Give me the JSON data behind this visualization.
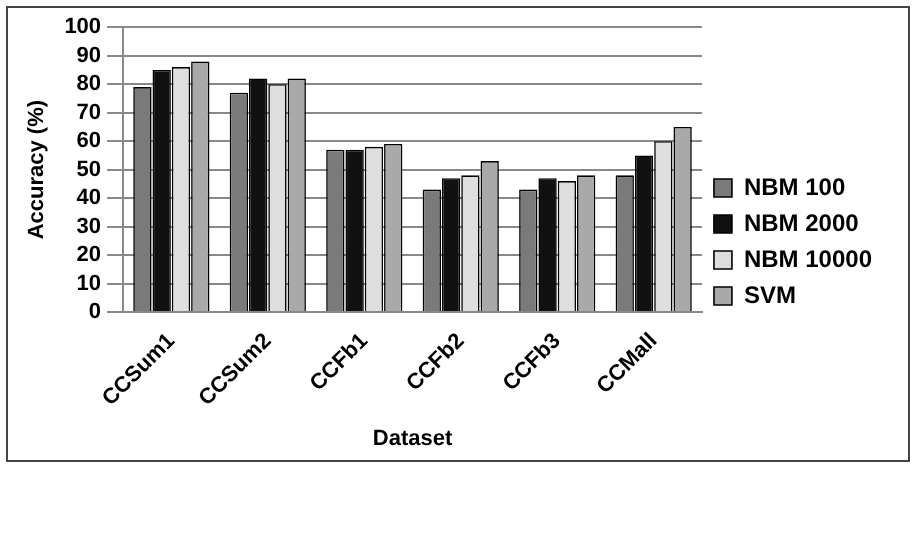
{
  "chart_data": {
    "type": "bar",
    "xlabel": "Dataset",
    "ylabel": "Accuracy (%)",
    "categories": [
      "CCSum1",
      "CCSum2",
      "CCFb1",
      "CCFb2",
      "CCFb3",
      "CCMall"
    ],
    "series": [
      {
        "name": "NBM 100",
        "color": "#7a7a7a",
        "values": [
          79,
          77,
          57,
          43,
          43,
          48
        ]
      },
      {
        "name": "NBM 2000",
        "color": "#111111",
        "values": [
          85,
          82,
          57,
          47,
          47,
          55
        ]
      },
      {
        "name": "NBM 10000",
        "color": "#dedede",
        "values": [
          86,
          80,
          58,
          48,
          46,
          60
        ]
      },
      {
        "name": "SVM",
        "color": "#a9a9a9",
        "values": [
          88,
          82,
          59,
          53,
          48,
          65
        ]
      }
    ],
    "ylim": [
      0,
      100
    ],
    "yticks": [
      0,
      10,
      20,
      30,
      40,
      50,
      60,
      70,
      80,
      90,
      100
    ],
    "grid": "y",
    "legend": "right"
  }
}
